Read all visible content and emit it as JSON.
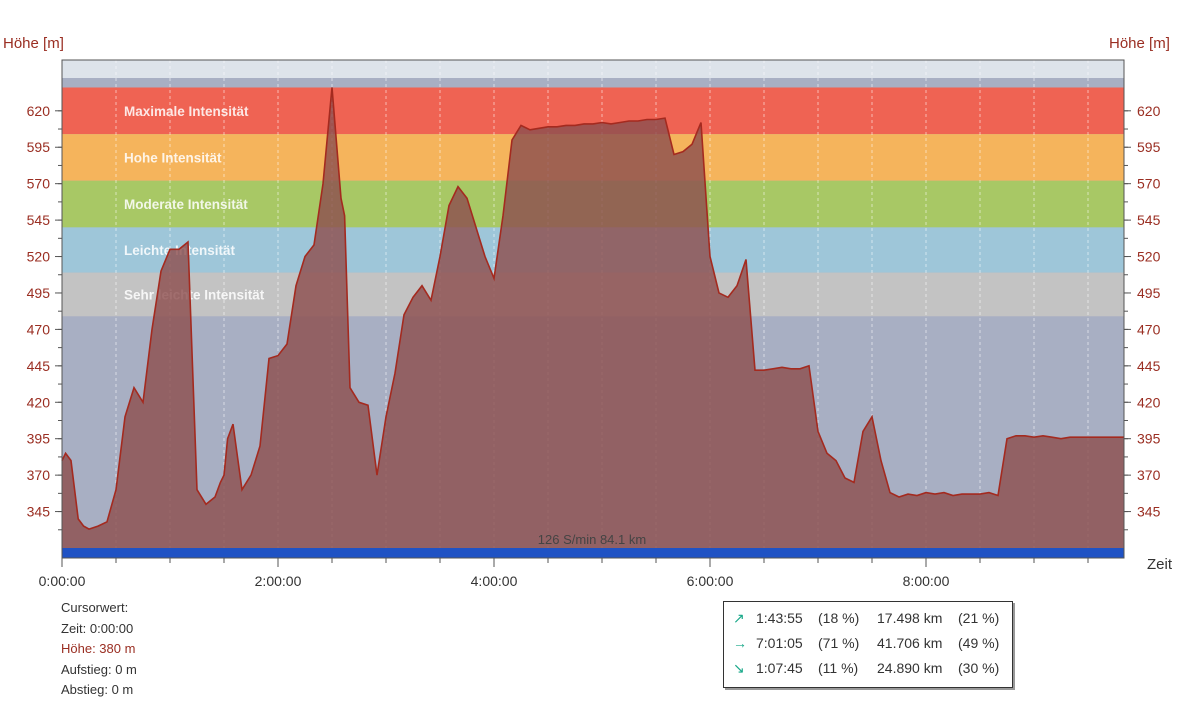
{
  "chart_data": {
    "type": "area",
    "y_axis_label_left": "Höhe  [m]",
    "y_axis_label_right": "Höhe  [m]",
    "x_axis_label": "Zeit",
    "ylim": [
      320,
      648
    ],
    "xlim": [
      0,
      35400
    ],
    "y_ticks": [
      345,
      370,
      395,
      420,
      445,
      470,
      495,
      520,
      545,
      570,
      595,
      620
    ],
    "x_ticks": [
      {
        "value": 0,
        "label": "0:00:00"
      },
      {
        "value": 7200,
        "label": "2:00:00"
      },
      {
        "value": 14400,
        "label": "4:00:00"
      },
      {
        "value": 21600,
        "label": "6:00:00"
      },
      {
        "value": 28800,
        "label": "8:00:00"
      }
    ],
    "zones": [
      {
        "label": "Maximale Intensität",
        "from": 604,
        "to": 636,
        "color": "#ef6353"
      },
      {
        "label": "Hohe Intensität",
        "from": 572,
        "to": 604,
        "color": "#f5b45c"
      },
      {
        "label": "Moderate Intensität",
        "from": 540,
        "to": 572,
        "color": "#a8c865"
      },
      {
        "label": "Leichte Intensität",
        "from": 509,
        "to": 540,
        "color": "#9ec6d9"
      },
      {
        "label": "Sehr leichte Intensität",
        "from": 479,
        "to": 509,
        "color": "#c3c3c3"
      }
    ],
    "area_color": "#8e4f4f",
    "line_color": "#a42a1f",
    "grade_bar_color": "#1f52c4",
    "bottom_annotation": "126 S/min 84.1 km",
    "series": [
      {
        "x": [
          0,
          120,
          300,
          420,
          540,
          720,
          900,
          1200,
          1500,
          1800,
          2100,
          2400,
          2700,
          3000,
          3300,
          3600,
          3900,
          4200,
          4500,
          4800,
          5100,
          5280,
          5400,
          5520,
          5700,
          6000,
          6300,
          6600,
          6900,
          7200,
          7500,
          7800,
          8100,
          8400,
          8700,
          9000,
          9300,
          9420,
          9600,
          9900,
          10200,
          10500,
          10800,
          11100,
          11400,
          11700,
          12000,
          12300,
          12600,
          12900,
          13200,
          13500,
          13800,
          14100,
          14400,
          14700,
          15000,
          15300,
          15600,
          15900,
          16200,
          16500,
          16800,
          17100,
          17400,
          17700,
          18000,
          18300,
          18600,
          18900,
          19200,
          19500,
          19800,
          20100,
          20400,
          20700,
          21000,
          21300,
          21600,
          21900,
          22200,
          22500,
          22800,
          23100,
          23400,
          23700,
          24000,
          24300,
          24600,
          24900,
          25200,
          25500,
          25800,
          26100,
          26400,
          26700,
          27000,
          27300,
          27600,
          27900,
          28200,
          28500,
          28800,
          29100,
          29400,
          29700,
          30000,
          30300,
          30600,
          30900,
          31200,
          31500,
          31800,
          32100,
          32400,
          32700,
          33000,
          33300,
          33600,
          33900,
          34200,
          34500,
          34800,
          35100,
          35400
        ],
        "values": [
          380,
          385,
          380,
          360,
          340,
          335,
          333,
          335,
          338,
          360,
          410,
          430,
          420,
          470,
          510,
          525,
          525,
          530,
          360,
          350,
          355,
          365,
          370,
          395,
          405,
          360,
          370,
          390,
          450,
          452,
          460,
          500,
          520,
          528,
          570,
          636,
          560,
          548,
          430,
          420,
          418,
          370,
          410,
          440,
          480,
          492,
          500,
          490,
          520,
          555,
          568,
          560,
          540,
          520,
          505,
          548,
          600,
          610,
          607,
          608,
          609,
          609,
          610,
          610,
          611,
          611,
          612,
          611,
          612,
          613,
          613,
          614,
          614,
          615,
          590,
          592,
          597,
          612,
          520,
          495,
          492,
          500,
          518,
          442,
          442,
          443,
          444,
          443,
          443,
          445,
          400,
          385,
          380,
          368,
          365,
          400,
          410,
          380,
          358,
          355,
          357,
          356,
          358,
          357,
          358,
          356,
          357,
          357,
          357,
          358,
          356,
          395,
          397,
          397,
          396,
          397,
          396,
          395,
          396,
          396,
          396,
          396,
          396,
          396,
          396
        ]
      }
    ]
  },
  "cursor_info": {
    "heading": "Cursorwert:",
    "time": "Zeit: 0:00:00",
    "height": "Höhe:  380 m",
    "ascent": "Aufstieg: 0 m",
    "descent": "Abstieg: 0 m"
  },
  "stats": [
    {
      "icon": "↗",
      "time": "1:43:55",
      "time_pct": "(18 %)",
      "distance": "17.498 km",
      "dist_pct": "(21 %)"
    },
    {
      "icon": "→",
      "time": "7:01:05",
      "time_pct": "(71 %)",
      "distance": "41.706 km",
      "dist_pct": "(49 %)"
    },
    {
      "icon": "↘",
      "time": "1:07:45",
      "time_pct": "(11 %)",
      "distance": "24.890 km",
      "dist_pct": "(30 %)"
    }
  ]
}
